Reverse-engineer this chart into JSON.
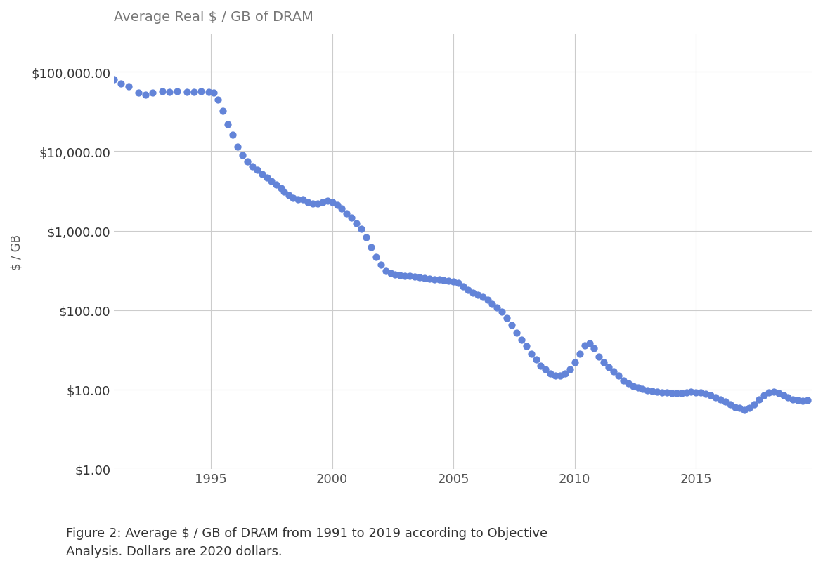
{
  "title": "Average Real $ / GB of DRAM",
  "ylabel": "$ / GB",
  "caption": "Figure 2: Average $ / GB of DRAM from 1991 to 2019 according to Objective\nAnalysis. Dollars are 2020 dollars.",
  "dot_color": "#6384d8",
  "background_color": "#ffffff",
  "grid_color": "#cccccc",
  "title_color": "#777777",
  "caption_color": "#333333",
  "xlim": [
    1991.0,
    2019.8
  ],
  "ylim_log": [
    1.0,
    300000
  ],
  "xticks": [
    1995,
    2000,
    2005,
    2010,
    2015
  ],
  "yticks": [
    1,
    10,
    100,
    1000,
    10000,
    100000
  ],
  "data": [
    [
      1991.0,
      80000
    ],
    [
      1991.3,
      72000
    ],
    [
      1991.6,
      66000
    ],
    [
      1992.0,
      55000
    ],
    [
      1992.3,
      52000
    ],
    [
      1992.6,
      55000
    ],
    [
      1993.0,
      57000
    ],
    [
      1993.3,
      56000
    ],
    [
      1993.6,
      57000
    ],
    [
      1994.0,
      56000
    ],
    [
      1994.3,
      56000
    ],
    [
      1994.6,
      57000
    ],
    [
      1994.9,
      56000
    ],
    [
      1995.1,
      55000
    ],
    [
      1995.3,
      45000
    ],
    [
      1995.5,
      32000
    ],
    [
      1995.7,
      22000
    ],
    [
      1995.9,
      16000
    ],
    [
      1996.1,
      11500
    ],
    [
      1996.3,
      9000
    ],
    [
      1996.5,
      7500
    ],
    [
      1996.7,
      6500
    ],
    [
      1996.9,
      5800
    ],
    [
      1997.1,
      5200
    ],
    [
      1997.3,
      4700
    ],
    [
      1997.5,
      4200
    ],
    [
      1997.7,
      3800
    ],
    [
      1997.9,
      3400
    ],
    [
      1998.0,
      3100
    ],
    [
      1998.2,
      2800
    ],
    [
      1998.4,
      2600
    ],
    [
      1998.6,
      2500
    ],
    [
      1998.8,
      2500
    ],
    [
      1999.0,
      2300
    ],
    [
      1999.2,
      2200
    ],
    [
      1999.4,
      2200
    ],
    [
      1999.6,
      2300
    ],
    [
      1999.8,
      2400
    ],
    [
      2000.0,
      2300
    ],
    [
      2000.2,
      2100
    ],
    [
      2000.4,
      1900
    ],
    [
      2000.6,
      1650
    ],
    [
      2000.8,
      1450
    ],
    [
      2001.0,
      1250
    ],
    [
      2001.2,
      1050
    ],
    [
      2001.4,
      820
    ],
    [
      2001.6,
      620
    ],
    [
      2001.8,
      470
    ],
    [
      2002.0,
      370
    ],
    [
      2002.2,
      310
    ],
    [
      2002.4,
      290
    ],
    [
      2002.6,
      280
    ],
    [
      2002.8,
      275
    ],
    [
      2003.0,
      270
    ],
    [
      2003.2,
      270
    ],
    [
      2003.4,
      265
    ],
    [
      2003.6,
      260
    ],
    [
      2003.8,
      255
    ],
    [
      2004.0,
      250
    ],
    [
      2004.2,
      245
    ],
    [
      2004.4,
      245
    ],
    [
      2004.6,
      240
    ],
    [
      2004.8,
      235
    ],
    [
      2005.0,
      230
    ],
    [
      2005.2,
      220
    ],
    [
      2005.4,
      200
    ],
    [
      2005.6,
      180
    ],
    [
      2005.8,
      165
    ],
    [
      2006.0,
      155
    ],
    [
      2006.2,
      145
    ],
    [
      2006.4,
      135
    ],
    [
      2006.6,
      120
    ],
    [
      2006.8,
      108
    ],
    [
      2007.0,
      95
    ],
    [
      2007.2,
      80
    ],
    [
      2007.4,
      65
    ],
    [
      2007.6,
      52
    ],
    [
      2007.8,
      42
    ],
    [
      2008.0,
      35
    ],
    [
      2008.2,
      28
    ],
    [
      2008.4,
      24
    ],
    [
      2008.6,
      20
    ],
    [
      2008.8,
      18
    ],
    [
      2009.0,
      16
    ],
    [
      2009.2,
      15
    ],
    [
      2009.4,
      15
    ],
    [
      2009.6,
      16
    ],
    [
      2009.8,
      18
    ],
    [
      2010.0,
      22
    ],
    [
      2010.2,
      28
    ],
    [
      2010.4,
      36
    ],
    [
      2010.6,
      38
    ],
    [
      2010.8,
      33
    ],
    [
      2011.0,
      26
    ],
    [
      2011.2,
      22
    ],
    [
      2011.4,
      19
    ],
    [
      2011.6,
      17
    ],
    [
      2011.8,
      15
    ],
    [
      2012.0,
      13
    ],
    [
      2012.2,
      12
    ],
    [
      2012.4,
      11
    ],
    [
      2012.6,
      10.5
    ],
    [
      2012.8,
      10.2
    ],
    [
      2013.0,
      9.8
    ],
    [
      2013.2,
      9.5
    ],
    [
      2013.4,
      9.3
    ],
    [
      2013.6,
      9.2
    ],
    [
      2013.8,
      9.1
    ],
    [
      2014.0,
      9.0
    ],
    [
      2014.2,
      9.0
    ],
    [
      2014.4,
      9.0
    ],
    [
      2014.6,
      9.2
    ],
    [
      2014.8,
      9.3
    ],
    [
      2015.0,
      9.2
    ],
    [
      2015.2,
      9.1
    ],
    [
      2015.4,
      8.8
    ],
    [
      2015.6,
      8.5
    ],
    [
      2015.8,
      8.0
    ],
    [
      2016.0,
      7.5
    ],
    [
      2016.2,
      7.0
    ],
    [
      2016.4,
      6.5
    ],
    [
      2016.6,
      6.0
    ],
    [
      2016.8,
      5.8
    ],
    [
      2017.0,
      5.5
    ],
    [
      2017.2,
      5.8
    ],
    [
      2017.4,
      6.5
    ],
    [
      2017.6,
      7.5
    ],
    [
      2017.8,
      8.5
    ],
    [
      2018.0,
      9.2
    ],
    [
      2018.2,
      9.3
    ],
    [
      2018.4,
      9.0
    ],
    [
      2018.6,
      8.5
    ],
    [
      2018.8,
      8.0
    ],
    [
      2019.0,
      7.5
    ],
    [
      2019.2,
      7.3
    ],
    [
      2019.4,
      7.2
    ],
    [
      2019.6,
      7.3
    ]
  ]
}
